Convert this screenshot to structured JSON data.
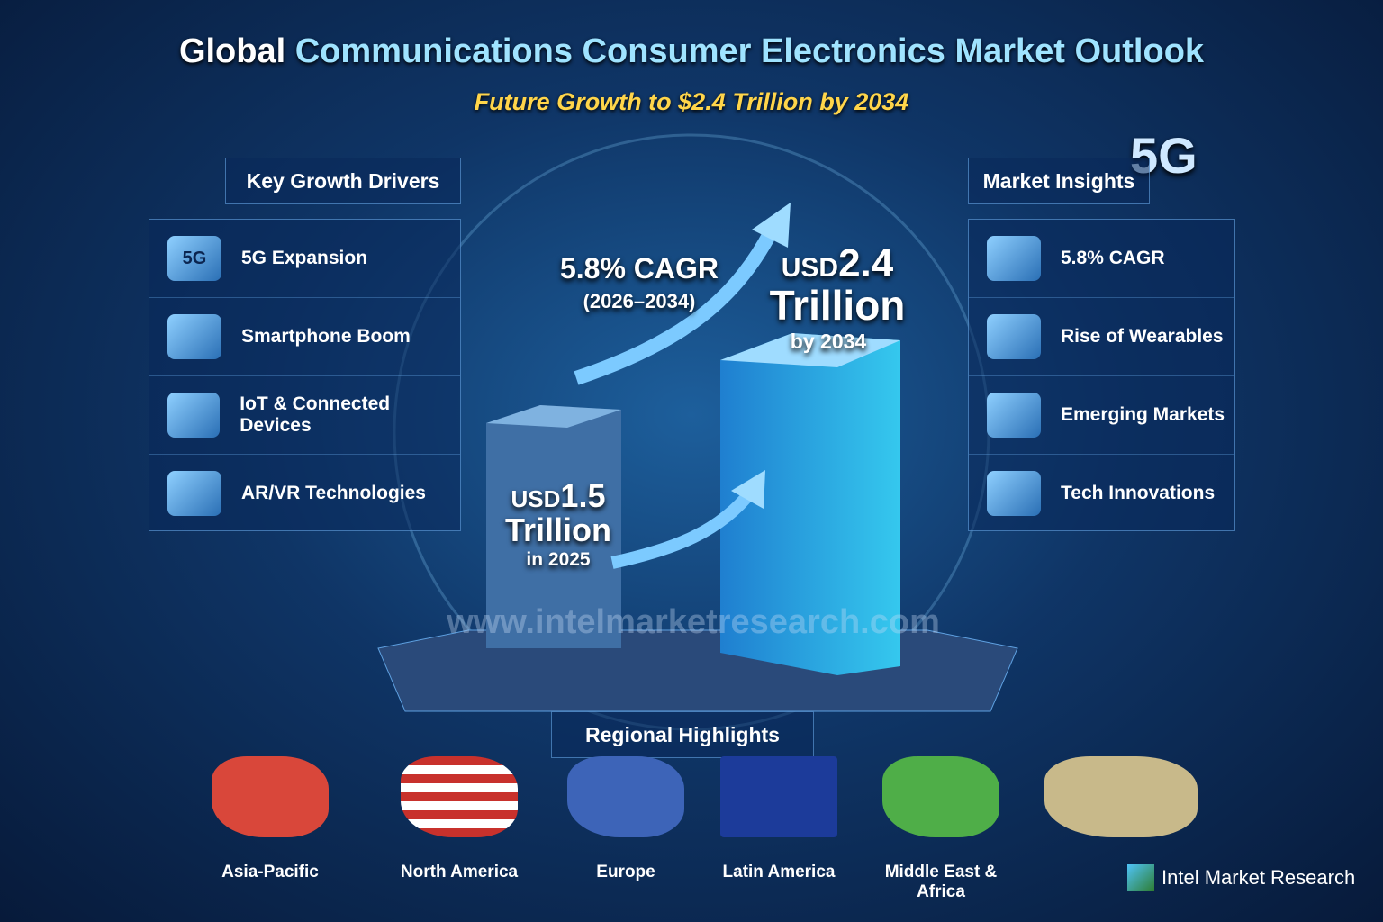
{
  "header": {
    "title_lead": "Global",
    "title_rest": "Communications Consumer Electronics Market Outlook",
    "subtitle": "Future Growth to $2.4 Trillion by 2034"
  },
  "badge": "5G",
  "drivers": {
    "title": "Key Growth Drivers",
    "items": [
      "5G Expansion",
      "Smartphone Boom",
      "IoT & Connected Devices",
      "AR/VR Technologies"
    ]
  },
  "insights": {
    "title": "Market Insights",
    "items": [
      "5.8% CAGR",
      "Rise of Wearables",
      "Emerging Markets",
      "Tech Innovations"
    ]
  },
  "center": {
    "cagr": "5.8% CAGR",
    "period": "(2026–2034)",
    "future": {
      "prefix": "USD",
      "amount": "2.4",
      "unit": "Trillion",
      "year": "by 2034"
    },
    "current": {
      "prefix": "USD",
      "amount": "1.5",
      "unit": "Trillion",
      "year": "in 2025"
    }
  },
  "watermark": "www.intelmarketresearch.com",
  "regions": {
    "title": "Regional Highlights",
    "items": [
      "Asia-Pacific",
      "North America",
      "Europe",
      "Latin America",
      "Middle East & Africa"
    ]
  },
  "brand": "Intel Market Research"
}
